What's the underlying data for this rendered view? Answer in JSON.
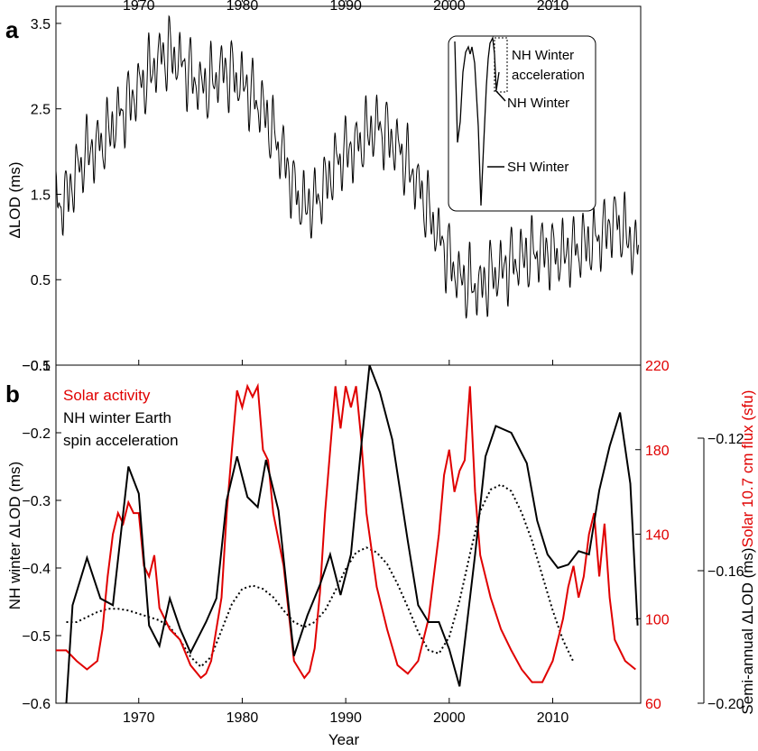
{
  "chart_data": [
    {
      "panel": "a",
      "type": "line",
      "ylabel": "ΔLOD (ms)",
      "xlim": [
        1962,
        2018.5
      ],
      "ylim": [
        -0.5,
        3.7
      ],
      "x_ticks": [
        "1970",
        "1980",
        "1990",
        "2000",
        "2010"
      ],
      "y_ticks": [
        "3.5",
        "2.5",
        "1.5",
        "0.5",
        "−0.5"
      ],
      "series": [
        {
          "name": "ΔLOD",
          "color": "#000000",
          "baseline": {
            "x": [
              1962,
              1963,
              1964,
              1965,
              1966,
              1967,
              1968,
              1969,
              1970,
              1971,
              1972,
              1973,
              1974,
              1975,
              1976,
              1977,
              1978,
              1979,
              1980,
              1981,
              1982,
              1983,
              1984,
              1985,
              1986,
              1987,
              1988,
              1989,
              1990,
              1991,
              1992,
              1993,
              1994,
              1995,
              1996,
              1997,
              1998,
              1999,
              2000,
              2001,
              2002,
              2003,
              2004,
              2005,
              2006,
              2007,
              2008,
              2009,
              2010,
              2011,
              2012,
              2013,
              2014,
              2015,
              2016,
              2017,
              2018
            ],
            "y": [
              1.35,
              1.45,
              1.75,
              2.0,
              2.05,
              2.2,
              2.4,
              2.55,
              2.75,
              2.9,
              3.1,
              3.15,
              3.05,
              2.9,
              2.75,
              2.8,
              2.95,
              2.9,
              2.8,
              2.65,
              2.5,
              2.2,
              1.95,
              1.55,
              1.35,
              1.4,
              1.6,
              1.85,
              2.0,
              2.05,
              2.2,
              2.3,
              2.2,
              2.05,
              1.85,
              1.6,
              1.3,
              1.0,
              0.75,
              0.5,
              0.45,
              0.4,
              0.55,
              0.6,
              0.7,
              0.75,
              0.8,
              0.85,
              0.8,
              0.8,
              0.85,
              0.9,
              0.95,
              1.05,
              1.2,
              1.05,
              0.85
            ]
          },
          "seasonal_amplitude_ms": 0.35
        }
      ],
      "inset": {
        "labels": [
          "NH Winter",
          "acceleration",
          "NH Winter",
          "SH Winter"
        ]
      }
    },
    {
      "panel": "b",
      "type": "line",
      "xlabel": "Year",
      "ylabel_left": "NH winter ΔLOD (ms)",
      "ylabel_right_red": "Solar 10.7 cm flux (sfu)",
      "ylabel_right_black": "Semi-annual ΔLOD (ms)",
      "xlim": [
        1962,
        2018.5
      ],
      "ylim_left": [
        -0.6,
        -0.1
      ],
      "ylim_red": [
        60,
        220
      ],
      "ylim_semi": [
        -0.2,
        -0.12
      ],
      "x_ticks": [
        "1970",
        "1980",
        "1990",
        "2000",
        "2010"
      ],
      "y_ticks_left": [
        "−0.1",
        "−0.2",
        "−0.3",
        "−0.4",
        "−0.5",
        "−0.6"
      ],
      "y_ticks_red": [
        "220",
        "180",
        "140",
        "100",
        "60"
      ],
      "y_ticks_semi": [
        "−0.12",
        "−0.16",
        "−0.20"
      ],
      "legend": [
        "Solar activity",
        "NH winter Earth",
        "spin acceleration"
      ],
      "series": [
        {
          "name": "NH winter Earth spin acceleration",
          "color": "#000000",
          "axis": "left",
          "x": [
            1963,
            1963.6,
            1965,
            1966.3,
            1967.5,
            1969,
            1970,
            1971,
            1972,
            1973,
            1974,
            1975,
            1976.5,
            1977.5,
            1978.5,
            1979.5,
            1980.5,
            1981.5,
            1982.3,
            1983.5,
            1985,
            1986.3,
            1987.5,
            1988.5,
            1989.5,
            1990.5,
            1991.5,
            1992.3,
            1993.3,
            1994.5,
            1996,
            1997,
            1998,
            1999,
            2000,
            2001,
            2002.5,
            2003.5,
            2004.5,
            2006,
            2007.5,
            2008.5,
            2009.5,
            2010.5,
            2011.5,
            2012.5,
            2013.5,
            2014.5,
            2015.5,
            2016.5,
            2017.5,
            2018.2
          ],
          "y": [
            -0.6,
            -0.455,
            -0.385,
            -0.445,
            -0.455,
            -0.25,
            -0.29,
            -0.485,
            -0.515,
            -0.445,
            -0.49,
            -0.525,
            -0.48,
            -0.445,
            -0.3,
            -0.235,
            -0.295,
            -0.31,
            -0.24,
            -0.315,
            -0.53,
            -0.47,
            -0.425,
            -0.38,
            -0.44,
            -0.38,
            -0.22,
            -0.1,
            -0.14,
            -0.21,
            -0.36,
            -0.455,
            -0.48,
            -0.48,
            -0.52,
            -0.575,
            -0.38,
            -0.235,
            -0.19,
            -0.2,
            -0.245,
            -0.33,
            -0.38,
            -0.4,
            -0.395,
            -0.375,
            -0.38,
            -0.285,
            -0.22,
            -0.17,
            -0.275,
            -0.485
          ]
        },
        {
          "name": "Solar activity",
          "color": "#e00000",
          "axis": "red",
          "x": [
            1962,
            1963,
            1964,
            1965,
            1966,
            1966.5,
            1967,
            1967.5,
            1968,
            1968.5,
            1969,
            1969.5,
            1970,
            1970.5,
            1971,
            1971.5,
            1972,
            1973,
            1974,
            1975,
            1976,
            1976.5,
            1977,
            1978,
            1978.5,
            1979,
            1979.5,
            1980,
            1980.5,
            1981,
            1981.5,
            1982,
            1982.5,
            1983,
            1984,
            1985,
            1986,
            1986.5,
            1987,
            1987.5,
            1988,
            1988.5,
            1989,
            1989.5,
            1990,
            1990.5,
            1991,
            1991.5,
            1992,
            1993,
            1994,
            1995,
            1996,
            1997,
            1998,
            1999,
            1999.5,
            2000,
            2000.5,
            2001,
            2001.5,
            2002,
            2002.5,
            2003,
            2004,
            2005,
            2006,
            2007,
            2008,
            2009,
            2010,
            2011,
            2011.5,
            2012,
            2012.5,
            2013,
            2013.5,
            2014,
            2014.5,
            2015,
            2015.5,
            2016,
            2017,
            2018
          ],
          "y": [
            85,
            85,
            80,
            76,
            80,
            95,
            120,
            140,
            150,
            145,
            155,
            150,
            150,
            125,
            120,
            130,
            105,
            95,
            90,
            78,
            72,
            74,
            80,
            110,
            150,
            180,
            208,
            200,
            210,
            205,
            210,
            180,
            175,
            150,
            125,
            80,
            72,
            75,
            86,
            112,
            150,
            180,
            210,
            190,
            210,
            200,
            210,
            185,
            150,
            115,
            95,
            78,
            74,
            80,
            100,
            140,
            168,
            180,
            160,
            170,
            175,
            210,
            160,
            130,
            110,
            95,
            85,
            76,
            70,
            70,
            80,
            100,
            115,
            125,
            110,
            120,
            140,
            150,
            120,
            145,
            110,
            90,
            80,
            76
          ]
        },
        {
          "name": "Semi-annual ΔLOD",
          "color": "#000000",
          "style": "dotted",
          "axis": "semi",
          "x": [
            1963,
            1964,
            1965,
            1966,
            1967,
            1968,
            1969,
            1970,
            1971,
            1972,
            1973,
            1974,
            1975,
            1976,
            1977,
            1978,
            1979,
            1980,
            1981,
            1982,
            1983,
            1984,
            1985,
            1986,
            1987,
            1988,
            1989,
            1990,
            1991,
            1992,
            1993,
            1994,
            1995,
            1996,
            1997,
            1998,
            1999,
            2000,
            2001,
            2002,
            2003,
            2004,
            2005,
            2006,
            2007,
            2008,
            2009,
            2010,
            2011,
            2012
          ],
          "y": [
            -0.1755,
            -0.1755,
            -0.174,
            -0.1725,
            -0.1715,
            -0.1715,
            -0.172,
            -0.173,
            -0.174,
            -0.175,
            -0.177,
            -0.181,
            -0.186,
            -0.189,
            -0.186,
            -0.178,
            -0.17,
            -0.1655,
            -0.1645,
            -0.1655,
            -0.168,
            -0.172,
            -0.1755,
            -0.177,
            -0.1755,
            -0.172,
            -0.166,
            -0.1595,
            -0.1545,
            -0.153,
            -0.1545,
            -0.158,
            -0.164,
            -0.171,
            -0.1785,
            -0.184,
            -0.185,
            -0.18,
            -0.169,
            -0.155,
            -0.142,
            -0.1355,
            -0.134,
            -0.136,
            -0.1425,
            -0.151,
            -0.1615,
            -0.172,
            -0.181,
            -0.1875
          ]
        }
      ]
    }
  ]
}
